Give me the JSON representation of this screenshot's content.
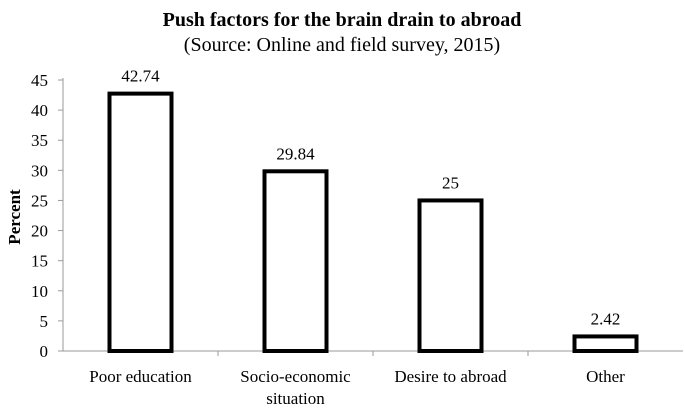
{
  "chart_data": {
    "type": "bar",
    "title": "Push factors for the brain drain to abroad",
    "subtitle": "(Source: Online and field survey, 2015)",
    "xlabel": "",
    "ylabel": "Percent",
    "categories": [
      [
        "Poor education"
      ],
      [
        "Socio-economic",
        "situation"
      ],
      [
        "Desire to abroad"
      ],
      [
        "Other"
      ]
    ],
    "values": [
      42.74,
      29.84,
      25,
      2.42
    ],
    "data_labels": [
      "42.74",
      "29.84",
      "25",
      "2.42"
    ],
    "ylim": [
      0,
      45
    ],
    "yticks": [
      0,
      5,
      10,
      15,
      20,
      25,
      30,
      35,
      40,
      45
    ],
    "grid": false,
    "legend": "none",
    "bar_fill": "#ffffff",
    "bar_stroke": "#000000"
  }
}
